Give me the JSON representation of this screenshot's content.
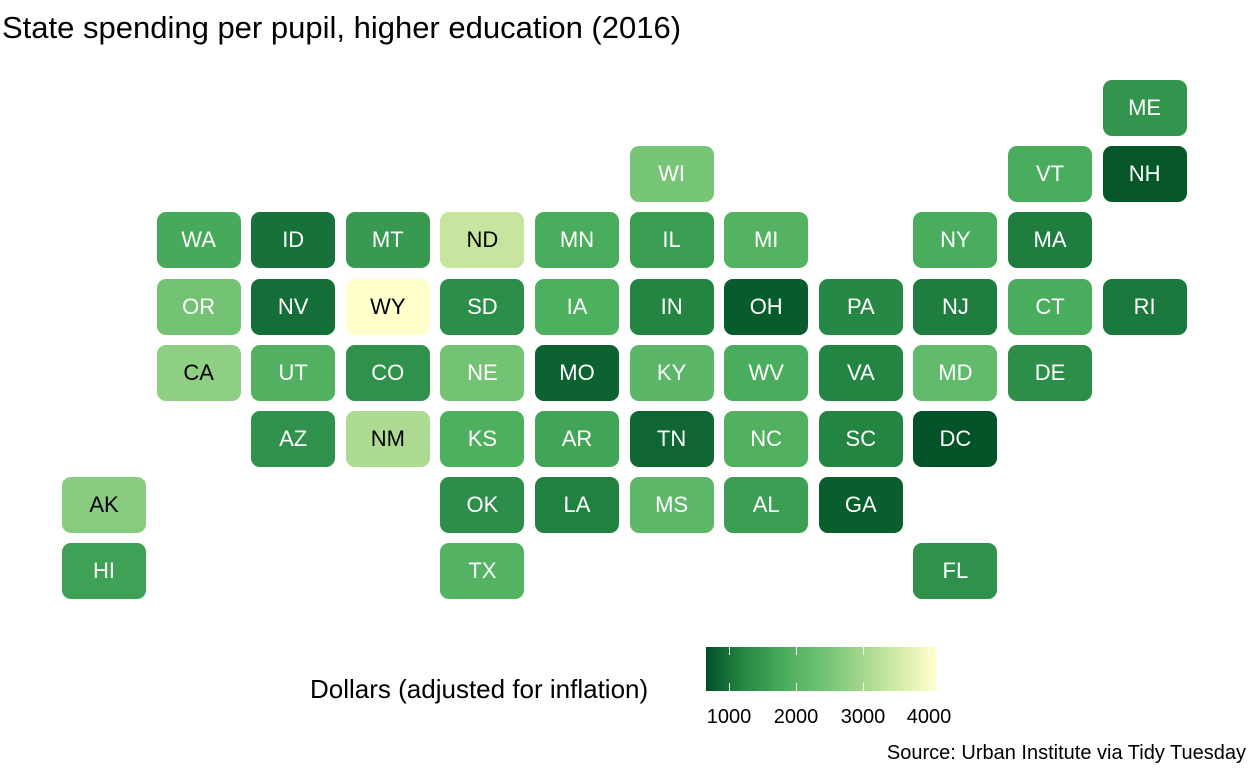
{
  "chart_data": {
    "type": "heatmap",
    "title": "State spending per pupil, higher education (2016)",
    "legend": {
      "title": "Dollars (adjusted for inflation)",
      "ticks": [
        1000,
        2000,
        3000,
        4000
      ],
      "range": [
        650,
        4100
      ],
      "placement": "bottom",
      "colors": [
        "#004f26",
        "#238443",
        "#4caf5e",
        "#7cc77a",
        "#c3e49d",
        "#ffffcc"
      ]
    },
    "caption": "Source: Urban Institute via Tidy Tuesday",
    "tiles": [
      {
        "state": "ME",
        "col": 11,
        "row": 0,
        "value": 1600
      },
      {
        "state": "WI",
        "col": 6,
        "row": 1,
        "value": 2650
      },
      {
        "state": "VT",
        "col": 10,
        "row": 1,
        "value": 2000
      },
      {
        "state": "NH",
        "col": 11,
        "row": 1,
        "value": 750
      },
      {
        "state": "WA",
        "col": 1,
        "row": 2,
        "value": 1950
      },
      {
        "state": "ID",
        "col": 2,
        "row": 2,
        "value": 1100
      },
      {
        "state": "MT",
        "col": 3,
        "row": 2,
        "value": 1700
      },
      {
        "state": "ND",
        "col": 4,
        "row": 2,
        "value": 3450
      },
      {
        "state": "MN",
        "col": 5,
        "row": 2,
        "value": 2000
      },
      {
        "state": "IL",
        "col": 6,
        "row": 2,
        "value": 1750
      },
      {
        "state": "MI",
        "col": 7,
        "row": 2,
        "value": 2150
      },
      {
        "state": "NY",
        "col": 9,
        "row": 2,
        "value": 2000
      },
      {
        "state": "MA",
        "col": 10,
        "row": 2,
        "value": 1250
      },
      {
        "state": "OR",
        "col": 1,
        "row": 3,
        "value": 2600
      },
      {
        "state": "NV",
        "col": 2,
        "row": 3,
        "value": 1050
      },
      {
        "state": "WY",
        "col": 3,
        "row": 3,
        "value": 4100
      },
      {
        "state": "SD",
        "col": 4,
        "row": 3,
        "value": 1500
      },
      {
        "state": "IA",
        "col": 5,
        "row": 3,
        "value": 2050
      },
      {
        "state": "IN",
        "col": 6,
        "row": 3,
        "value": 1350
      },
      {
        "state": "OH",
        "col": 7,
        "row": 3,
        "value": 800
      },
      {
        "state": "PA",
        "col": 8,
        "row": 3,
        "value": 1400
      },
      {
        "state": "NJ",
        "col": 9,
        "row": 3,
        "value": 1250
      },
      {
        "state": "CT",
        "col": 10,
        "row": 3,
        "value": 2000
      },
      {
        "state": "RI",
        "col": 11,
        "row": 3,
        "value": 1200
      },
      {
        "state": "CA",
        "col": 1,
        "row": 4,
        "value": 2900
      },
      {
        "state": "UT",
        "col": 2,
        "row": 4,
        "value": 2100
      },
      {
        "state": "CO",
        "col": 3,
        "row": 4,
        "value": 1550
      },
      {
        "state": "NE",
        "col": 4,
        "row": 4,
        "value": 2600
      },
      {
        "state": "MO",
        "col": 5,
        "row": 4,
        "value": 900
      },
      {
        "state": "KY",
        "col": 6,
        "row": 4,
        "value": 2250
      },
      {
        "state": "WV",
        "col": 7,
        "row": 4,
        "value": 2000
      },
      {
        "state": "VA",
        "col": 8,
        "row": 4,
        "value": 1350
      },
      {
        "state": "MD",
        "col": 9,
        "row": 4,
        "value": 2350
      },
      {
        "state": "DE",
        "col": 10,
        "row": 4,
        "value": 1500
      },
      {
        "state": "AZ",
        "col": 2,
        "row": 5,
        "value": 1550
      },
      {
        "state": "NM",
        "col": 3,
        "row": 5,
        "value": 3200
      },
      {
        "state": "KS",
        "col": 4,
        "row": 5,
        "value": 2050
      },
      {
        "state": "AR",
        "col": 5,
        "row": 5,
        "value": 1850
      },
      {
        "state": "TN",
        "col": 6,
        "row": 5,
        "value": 950
      },
      {
        "state": "NC",
        "col": 7,
        "row": 5,
        "value": 2100
      },
      {
        "state": "SC",
        "col": 8,
        "row": 5,
        "value": 1350
      },
      {
        "state": "DC",
        "col": 9,
        "row": 5,
        "value": 700
      },
      {
        "state": "AK",
        "col": 0,
        "row": 6,
        "value": 2850
      },
      {
        "state": "OK",
        "col": 4,
        "row": 6,
        "value": 1500
      },
      {
        "state": "LA",
        "col": 5,
        "row": 6,
        "value": 1300
      },
      {
        "state": "MS",
        "col": 6,
        "row": 6,
        "value": 2300
      },
      {
        "state": "AL",
        "col": 7,
        "row": 6,
        "value": 1750
      },
      {
        "state": "GA",
        "col": 8,
        "row": 6,
        "value": 850
      },
      {
        "state": "HI",
        "col": 0,
        "row": 7,
        "value": 1800
      },
      {
        "state": "TX",
        "col": 4,
        "row": 7,
        "value": 2150
      },
      {
        "state": "FL",
        "col": 9,
        "row": 7,
        "value": 1550
      }
    ]
  }
}
